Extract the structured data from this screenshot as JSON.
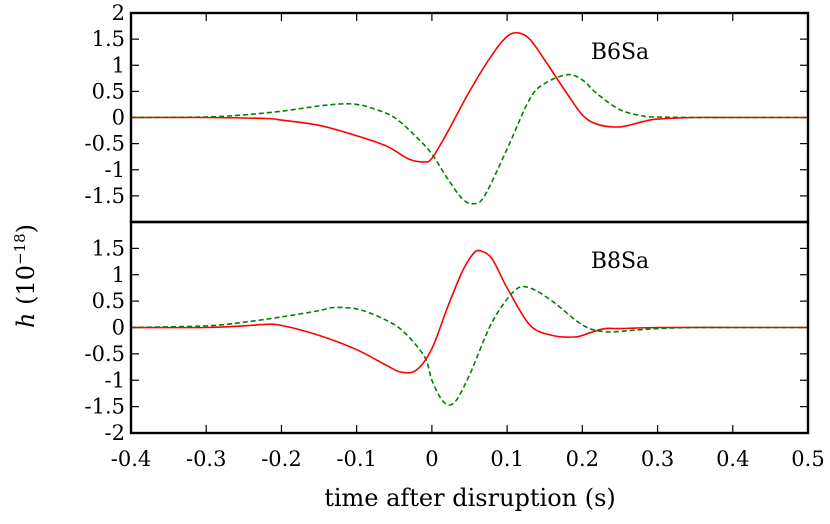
{
  "chart_data": {
    "type": "line",
    "xlabel": "time after disruption (s)",
    "ylabel": "h (10^-18)",
    "ylabel_parts": {
      "symbol": "h",
      "open": " (10",
      "exponent": "−18",
      "close": ")"
    },
    "xlim": [
      -0.4,
      0.5
    ],
    "x_ticks": [
      "-0.4",
      "-0.3",
      "-0.2",
      "-0.1",
      "0",
      "0.1",
      "0.2",
      "0.3",
      "0.4",
      "0.5"
    ],
    "grid": false,
    "legend": "none",
    "colors": {
      "solid": "#ff0000",
      "dashed": "#008000",
      "frame": "#000000"
    },
    "panels": [
      {
        "label": "B6Sa",
        "ylim": [
          -2,
          2
        ],
        "y_ticks": [
          "2",
          "1.5",
          "1",
          "0.5",
          "0",
          "-0.5",
          "-1",
          "-1.5"
        ],
        "series": [
          {
            "style": "solid",
            "color": "#ff0000",
            "x": [
              -0.4,
              -0.3,
              -0.22,
              -0.2,
              -0.15,
              -0.1,
              -0.06,
              -0.03,
              -0.01,
              0.0,
              0.02,
              0.05,
              0.08,
              0.1,
              0.115,
              0.13,
              0.15,
              0.18,
              0.2,
              0.22,
              0.25,
              0.28,
              0.3,
              0.35,
              0.4,
              0.5
            ],
            "y": [
              0,
              0,
              -0.02,
              -0.05,
              -0.15,
              -0.35,
              -0.55,
              -0.8,
              -0.85,
              -0.78,
              -0.3,
              0.5,
              1.2,
              1.55,
              1.62,
              1.5,
              1.1,
              0.45,
              0.05,
              -0.13,
              -0.18,
              -0.08,
              -0.03,
              0,
              0,
              0
            ]
          },
          {
            "style": "dashed",
            "color": "#008000",
            "x": [
              -0.4,
              -0.3,
              -0.25,
              -0.2,
              -0.15,
              -0.12,
              -0.1,
              -0.08,
              -0.05,
              -0.02,
              0.0,
              0.02,
              0.04,
              0.055,
              0.07,
              0.1,
              0.13,
              0.15,
              0.18,
              0.2,
              0.22,
              0.25,
              0.28,
              0.3,
              0.35,
              0.4,
              0.5
            ],
            "y": [
              0,
              0.01,
              0.05,
              0.12,
              0.22,
              0.26,
              0.25,
              0.18,
              0.0,
              -0.38,
              -0.7,
              -1.15,
              -1.55,
              -1.65,
              -1.5,
              -0.6,
              0.35,
              0.65,
              0.82,
              0.72,
              0.45,
              0.15,
              0.03,
              0.01,
              0,
              0,
              0
            ]
          }
        ]
      },
      {
        "label": "B8Sa",
        "ylim": [
          -2,
          2
        ],
        "y_ticks": [
          "1.5",
          "1",
          "0.5",
          "0",
          "-0.5",
          "-1",
          "-1.5",
          "-2"
        ],
        "series": [
          {
            "style": "solid",
            "color": "#ff0000",
            "x": [
              -0.4,
              -0.3,
              -0.25,
              -0.22,
              -0.2,
              -0.15,
              -0.1,
              -0.06,
              -0.04,
              -0.02,
              0.0,
              0.02,
              0.04,
              0.055,
              0.065,
              0.08,
              0.1,
              0.13,
              0.16,
              0.19,
              0.21,
              0.23,
              0.25,
              0.3,
              0.4,
              0.5
            ],
            "y": [
              0,
              0,
              0.03,
              0.06,
              0.04,
              -0.15,
              -0.42,
              -0.72,
              -0.85,
              -0.8,
              -0.4,
              0.35,
              1.05,
              1.4,
              1.45,
              1.3,
              0.75,
              0.05,
              -0.15,
              -0.18,
              -0.1,
              -0.02,
              -0.02,
              0,
              0,
              0
            ]
          },
          {
            "style": "dashed",
            "color": "#008000",
            "x": [
              -0.4,
              -0.3,
              -0.25,
              -0.2,
              -0.15,
              -0.13,
              -0.1,
              -0.07,
              -0.04,
              -0.01,
              0.0,
              0.015,
              0.03,
              0.05,
              0.08,
              0.11,
              0.13,
              0.16,
              0.2,
              0.23,
              0.27,
              0.3,
              0.35,
              0.4,
              0.5
            ],
            "y": [
              0,
              0.03,
              0.1,
              0.2,
              0.32,
              0.38,
              0.35,
              0.2,
              -0.05,
              -0.55,
              -1.0,
              -1.4,
              -1.42,
              -0.9,
              0.1,
              0.7,
              0.75,
              0.5,
              0.05,
              -0.08,
              -0.05,
              -0.02,
              0,
              0,
              0
            ]
          }
        ]
      }
    ]
  }
}
